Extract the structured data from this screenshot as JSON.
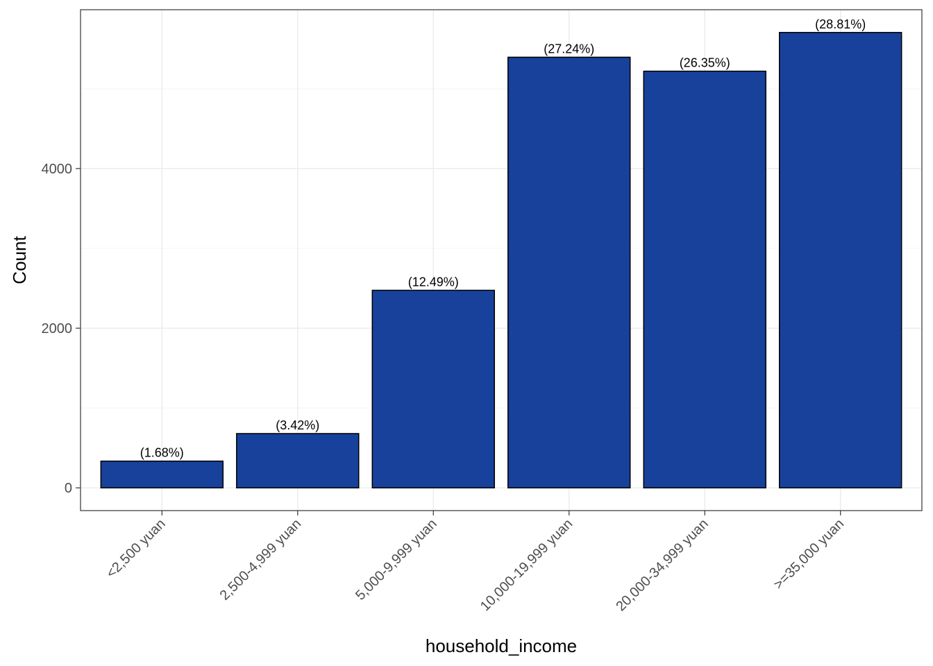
{
  "chart_data": {
    "type": "bar",
    "title": "",
    "xlabel": "household_income",
    "ylabel": "Count",
    "categories": [
      "<2,500 yuan",
      "2,500-4,999 yuan",
      "5,000-9,999 yuan",
      "10,000-19,999 yuan",
      "20,000-34,999 yuan",
      ">=35,000 yuan"
    ],
    "values": [
      335,
      680,
      2475,
      5395,
      5220,
      5705
    ],
    "data_labels": [
      "(1.68%)",
      "(3.42%)",
      "(12.49%)",
      "(27.24%)",
      "(26.35%)",
      "(28.81%)"
    ],
    "yticks": [
      0,
      2000,
      4000
    ],
    "ytick_labels": [
      "0",
      "2000",
      "4000"
    ],
    "ylim": [
      -285,
      5990
    ],
    "grid": true,
    "legend": "none",
    "colors": {
      "bar_fill": "#17419A",
      "bar_stroke": "#000000",
      "grid_major": "#EBEBEB",
      "grid_minor": "#F5F5F5",
      "panel_border": "#333333"
    }
  }
}
